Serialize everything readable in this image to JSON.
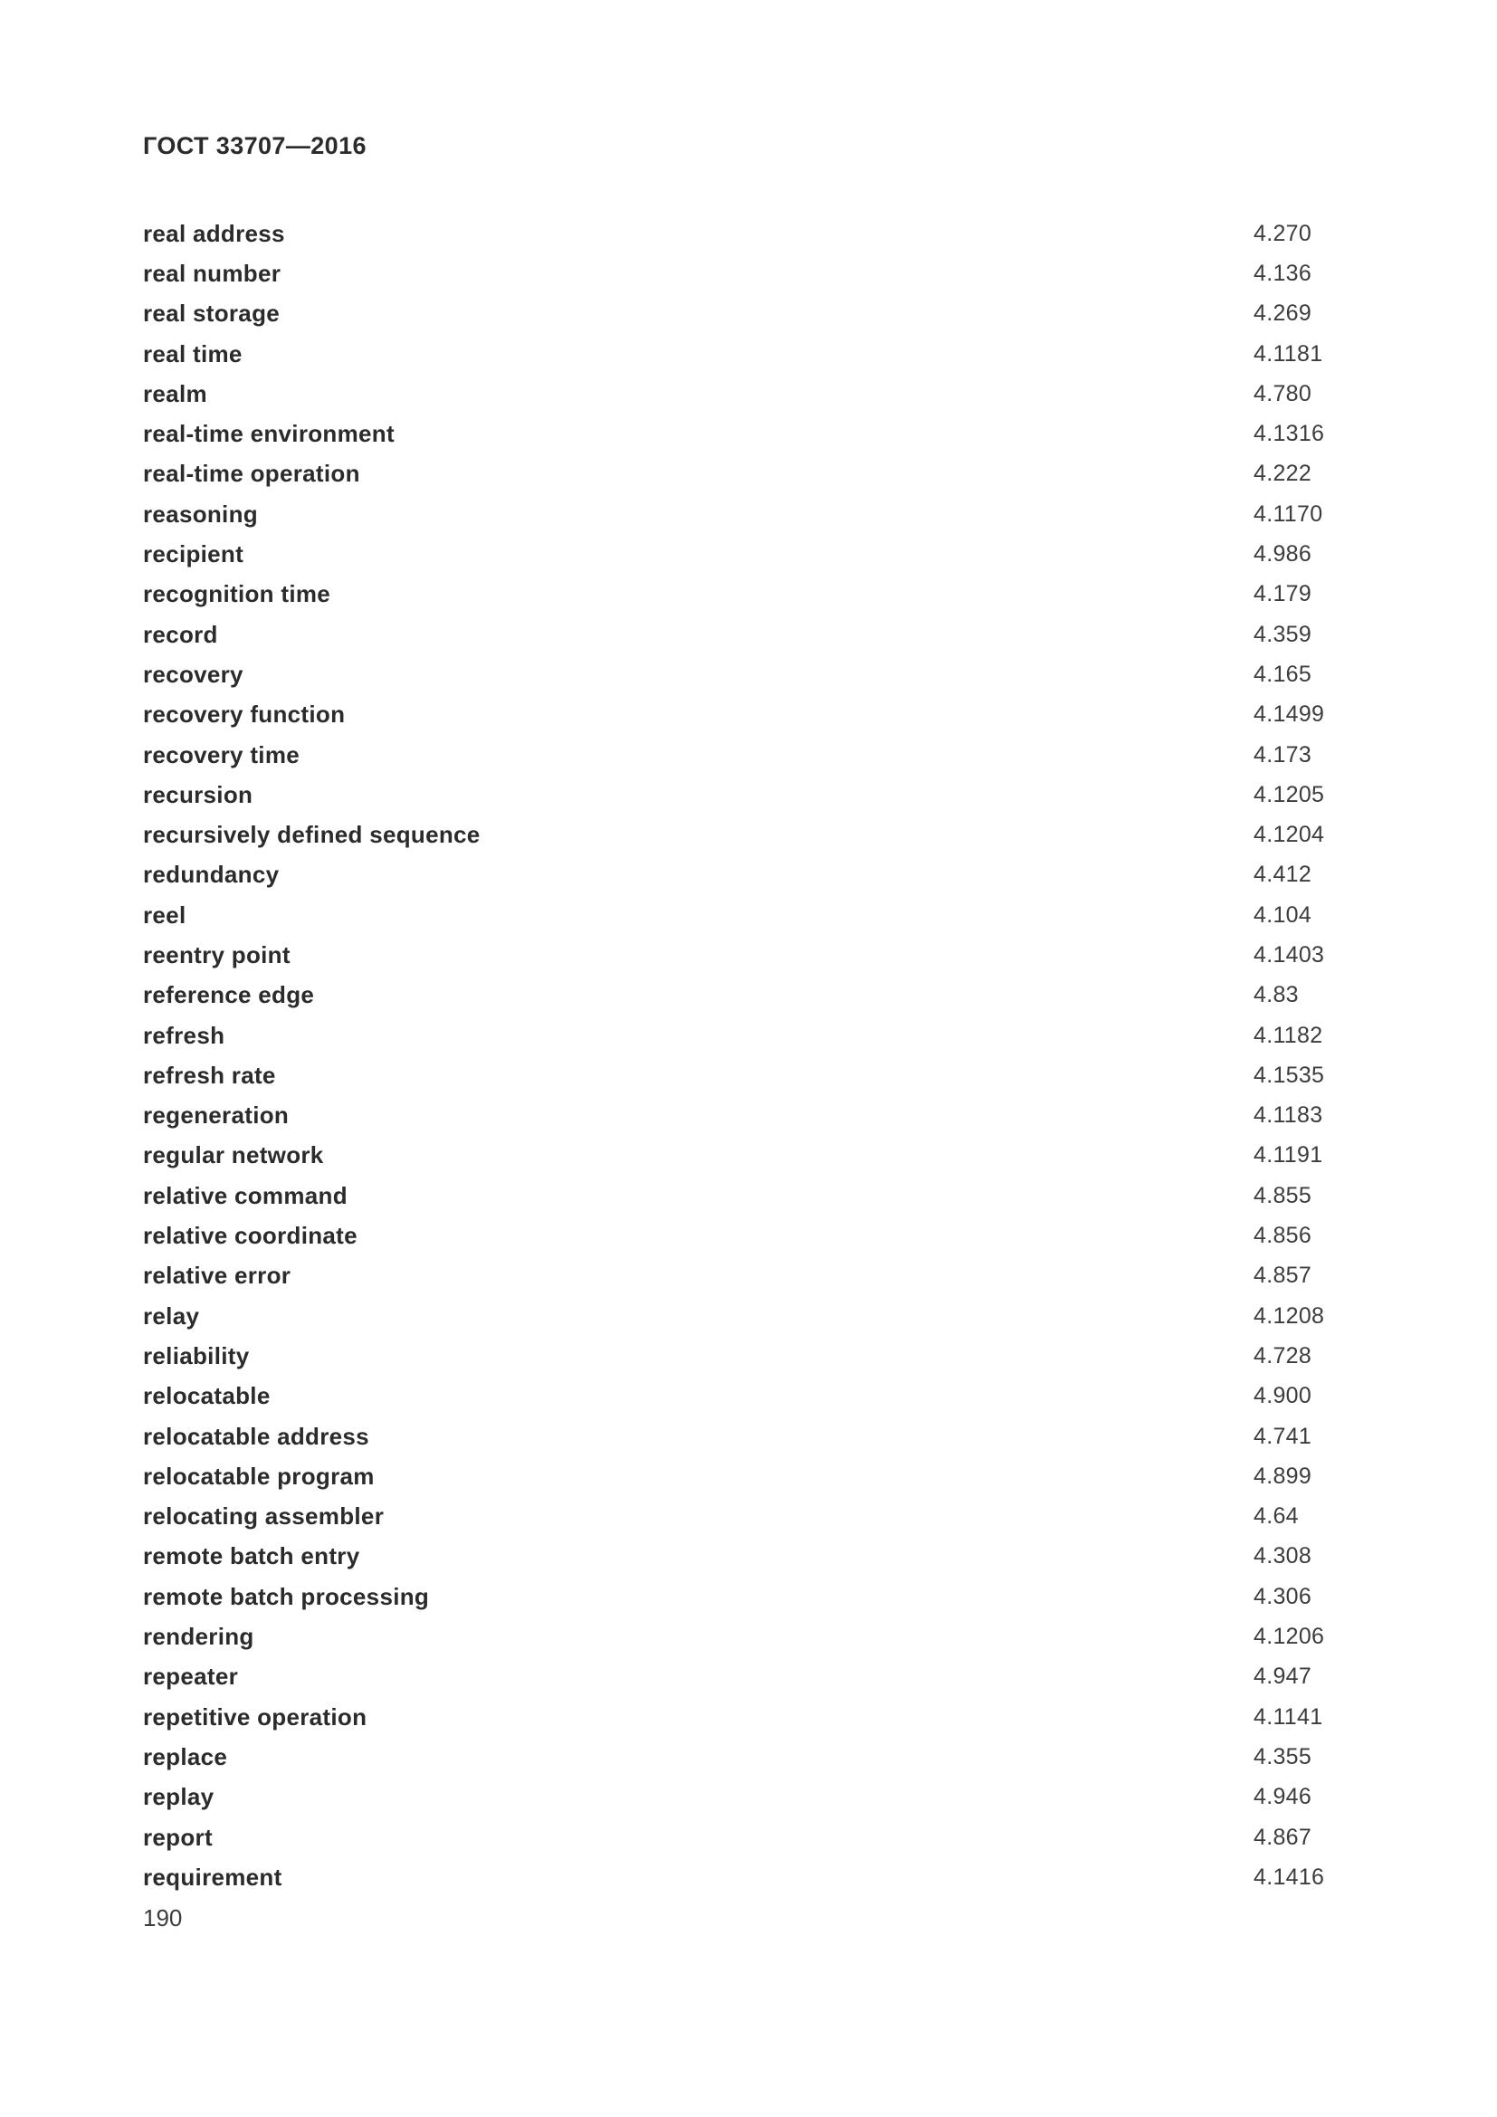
{
  "document": {
    "header": "ГОСТ 33707—2016",
    "page_number": "190"
  },
  "index": {
    "entries": [
      {
        "term": "real address",
        "ref": "4.270"
      },
      {
        "term": "real number",
        "ref": "4.136"
      },
      {
        "term": "real storage",
        "ref": "4.269"
      },
      {
        "term": "real time",
        "ref": "4.1181"
      },
      {
        "term": "realm",
        "ref": "4.780"
      },
      {
        "term": "real-time environment",
        "ref": "4.1316"
      },
      {
        "term": "real-time operation",
        "ref": "4.222"
      },
      {
        "term": "reasoning",
        "ref": "4.1170"
      },
      {
        "term": "recipient",
        "ref": "4.986"
      },
      {
        "term": "recognition time",
        "ref": "4.179"
      },
      {
        "term": "record",
        "ref": "4.359"
      },
      {
        "term": "recovery",
        "ref": "4.165"
      },
      {
        "term": "recovery function",
        "ref": "4.1499"
      },
      {
        "term": "recovery time",
        "ref": "4.173"
      },
      {
        "term": "recursion",
        "ref": "4.1205"
      },
      {
        "term": "recursively defined sequence",
        "ref": "4.1204"
      },
      {
        "term": "redundancy",
        "ref": "4.412"
      },
      {
        "term": "reel",
        "ref": "4.104"
      },
      {
        "term": "reentry point",
        "ref": "4.1403"
      },
      {
        "term": "reference edge",
        "ref": "4.83"
      },
      {
        "term": "refresh",
        "ref": "4.1182"
      },
      {
        "term": "refresh rate",
        "ref": "4.1535"
      },
      {
        "term": "regeneration",
        "ref": "4.1183"
      },
      {
        "term": "regular network",
        "ref": "4.1191"
      },
      {
        "term": "relative command",
        "ref": "4.855"
      },
      {
        "term": "relative coordinate",
        "ref": "4.856"
      },
      {
        "term": "relative error",
        "ref": "4.857"
      },
      {
        "term": "relay",
        "ref": "4.1208"
      },
      {
        "term": "reliability",
        "ref": "4.728"
      },
      {
        "term": "relocatable",
        "ref": "4.900"
      },
      {
        "term": "relocatable address",
        "ref": "4.741"
      },
      {
        "term": "relocatable program",
        "ref": "4.899"
      },
      {
        "term": "relocating assembler",
        "ref": "4.64"
      },
      {
        "term": "remote batch entry",
        "ref": "4.308"
      },
      {
        "term": "remote batch processing",
        "ref": "4.306"
      },
      {
        "term": "rendering",
        "ref": "4.1206"
      },
      {
        "term": "repeater",
        "ref": "4.947"
      },
      {
        "term": "repetitive operation",
        "ref": "4.1141"
      },
      {
        "term": "replace",
        "ref": "4.355"
      },
      {
        "term": "replay",
        "ref": "4.946"
      },
      {
        "term": "report",
        "ref": "4.867"
      },
      {
        "term": "requirement",
        "ref": "4.1416"
      }
    ]
  }
}
